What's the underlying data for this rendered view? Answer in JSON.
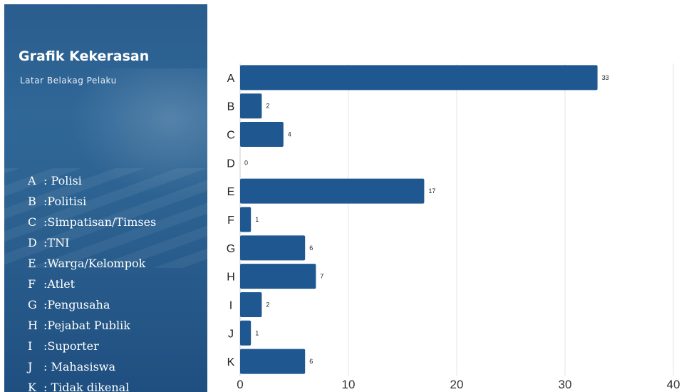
{
  "panel": {
    "title": "Grafik Kekerasan",
    "subtitle": "Latar Belakag Pelaku",
    "legend": [
      {
        "key": "A",
        "label": ": Polisi"
      },
      {
        "key": "B",
        "label": ":Politisi"
      },
      {
        "key": "C",
        "label": ":Simpatisan/Timses"
      },
      {
        "key": "D",
        "label": ":TNI"
      },
      {
        "key": "E",
        "label": ":Warga/Kelompok"
      },
      {
        "key": "F",
        "label": ":Atlet"
      },
      {
        "key": "G",
        "label": ":Pengusaha"
      },
      {
        "key": "H",
        "label": ":Pejabat Publik"
      },
      {
        "key": "I",
        "label": ":Suporter"
      },
      {
        "key": "J",
        "label": ": Mahasiswa"
      },
      {
        "key": "K",
        "label": ": Tidak dikenal"
      }
    ]
  },
  "colors": {
    "bar": "#1f5890",
    "panel": "#2a5d8e",
    "grid": "#e6e6e6"
  },
  "chart_data": {
    "type": "bar",
    "orientation": "horizontal",
    "categories": [
      "A",
      "B",
      "C",
      "D",
      "E",
      "F",
      "G",
      "H",
      "I",
      "J",
      "K"
    ],
    "values": [
      33,
      2,
      4,
      0,
      17,
      1,
      6,
      7,
      2,
      1,
      6
    ],
    "data_labels": [
      "33",
      "2",
      "4",
      "0",
      "17",
      "1",
      "6",
      "7",
      "2",
      "1",
      "6"
    ],
    "xlim": [
      0,
      40
    ],
    "xticks": [
      0,
      10,
      20,
      30,
      40
    ],
    "grid": true,
    "xlabel": "",
    "ylabel": ""
  }
}
